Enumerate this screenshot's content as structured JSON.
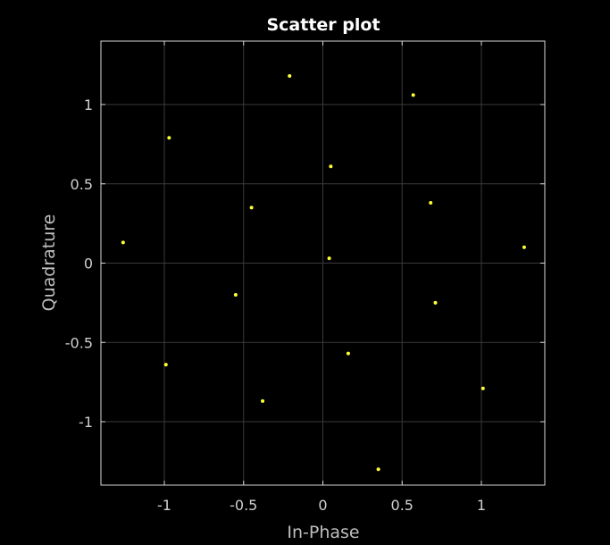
{
  "chart_data": {
    "type": "scatter",
    "title": "Scatter plot",
    "xlabel": "In-Phase",
    "ylabel": "Quadrature",
    "xlim": [
      -1.4,
      1.4
    ],
    "ylim": [
      -1.4,
      1.4
    ],
    "xticks": [
      -1,
      -0.5,
      0,
      0.5,
      1
    ],
    "yticks": [
      -1,
      -0.5,
      0,
      0.5,
      1
    ],
    "xtick_labels": [
      "-1",
      "-0.5",
      "0",
      "0.5",
      "1"
    ],
    "ytick_labels": [
      "-1",
      "-0.5",
      "0",
      "0.5",
      "1"
    ],
    "grid": true,
    "background": "#000000",
    "marker_color": "#ffff33",
    "points": [
      {
        "x": -0.21,
        "y": 1.18
      },
      {
        "x": 0.57,
        "y": 1.06
      },
      {
        "x": -0.97,
        "y": 0.79
      },
      {
        "x": 0.05,
        "y": 0.61
      },
      {
        "x": -0.45,
        "y": 0.35
      },
      {
        "x": 0.68,
        "y": 0.38
      },
      {
        "x": -1.26,
        "y": 0.13
      },
      {
        "x": 1.27,
        "y": 0.1
      },
      {
        "x": 0.04,
        "y": 0.03
      },
      {
        "x": -0.55,
        "y": -0.2
      },
      {
        "x": 0.71,
        "y": -0.25
      },
      {
        "x": 0.16,
        "y": -0.57
      },
      {
        "x": -0.99,
        "y": -0.64
      },
      {
        "x": 1.01,
        "y": -0.79
      },
      {
        "x": -0.38,
        "y": -0.87
      },
      {
        "x": 0.35,
        "y": -1.3
      }
    ]
  }
}
